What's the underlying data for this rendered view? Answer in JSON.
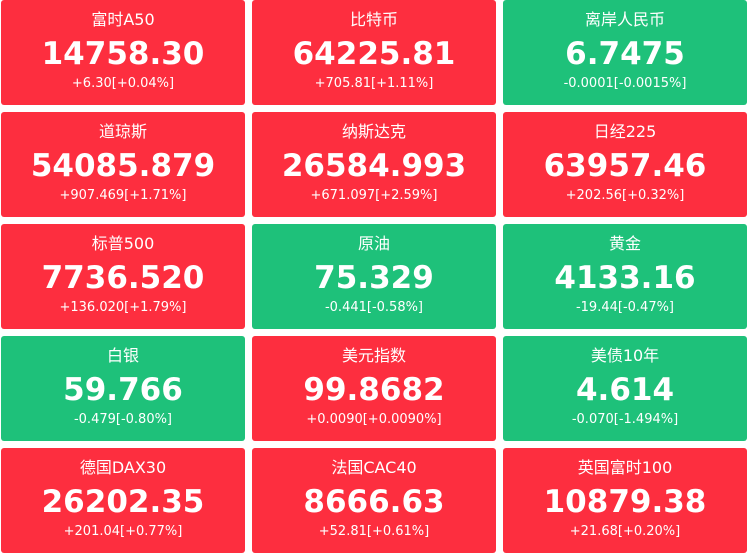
{
  "tiles": [
    {
      "name": "富时A50",
      "value": "14758.30",
      "change": "+6.30[+0.04%]",
      "color": "#fd2e3f"
    },
    {
      "name": "比特币",
      "value": "64225.81",
      "change": "+705.81[+1.11%]",
      "color": "#fd2e3f"
    },
    {
      "name": "离岸人民币",
      "value": "6.7475",
      "change": "-0.0001[-0.0015%]",
      "color": "#1ec17a"
    },
    {
      "name": "道琼斯",
      "value": "54085.879",
      "change": "+907.469[+1.71%]",
      "color": "#fd2e3f"
    },
    {
      "name": "纳斯达克",
      "value": "26584.993",
      "change": "+671.097[+2.59%]",
      "color": "#fd2e3f"
    },
    {
      "name": "日经225",
      "value": "63957.46",
      "change": "+202.56[+0.32%]",
      "color": "#fd2e3f"
    },
    {
      "name": "标普500",
      "value": "7736.520",
      "change": "+136.020[+1.79%]",
      "color": "#fd2e3f"
    },
    {
      "name": "原油",
      "value": "75.329",
      "change": "-0.441[-0.58%]",
      "color": "#1ec17a"
    },
    {
      "name": "黄金",
      "value": "4133.16",
      "change": "-19.44[-0.47%]",
      "color": "#1ec17a"
    },
    {
      "name": "白银",
      "value": "59.766",
      "change": "-0.479[-0.80%]",
      "color": "#1ec17a"
    },
    {
      "name": "美元指数",
      "value": "99.8682",
      "change": "+0.0090[+0.0090%]",
      "color": "#fd2e3f"
    },
    {
      "name": "美债10年",
      "value": "4.614",
      "change": "-0.070[-1.494%]",
      "color": "#1ec17a"
    },
    {
      "name": "德国DAX30",
      "value": "26202.35",
      "change": "+201.04[+0.77%]",
      "color": "#fd2e3f"
    },
    {
      "name": "法国CAC40",
      "value": "8666.63",
      "change": "+52.81[+0.61%]",
      "color": "#fd2e3f"
    },
    {
      "name": "英国富时100",
      "value": "10879.38",
      "change": "+21.68[+0.20%]",
      "color": "#fd2e3f"
    }
  ]
}
